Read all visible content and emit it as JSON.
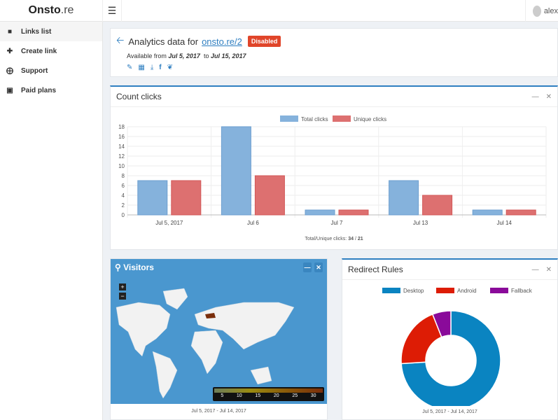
{
  "app": {
    "brand_bold": "Onsto",
    "brand_rest": ".re",
    "menu_icon": "hamburger-icon",
    "user": "alex"
  },
  "sidebar": {
    "items": [
      {
        "label": "Links list",
        "icon": "book-icon"
      },
      {
        "label": "Create link",
        "icon": "plus-icon"
      },
      {
        "label": "Support",
        "icon": "lifebuoy-icon"
      },
      {
        "label": "Paid plans",
        "icon": "money-icon"
      }
    ]
  },
  "header": {
    "title": "Analytics data for",
    "link": "onsto.re/2",
    "badge": "Disabled",
    "avail_prefix": "Available from",
    "from": "Jul 5, 2017",
    "to_word": "to",
    "to": "Jul 15, 2017"
  },
  "count_clicks": {
    "title": "Count clicks",
    "summary_label": "Total/Unique clicks:",
    "total": "34",
    "sep": "/",
    "unique": "21"
  },
  "visitors": {
    "title": "Visitors",
    "scale": [
      "5",
      "10",
      "15",
      "20",
      "25",
      "30"
    ],
    "range": "Jul 5, 2017 - Jul 14, 2017",
    "highlight_country": "Ukraine"
  },
  "redirect": {
    "title": "Redirect Rules",
    "range": "Jul 5, 2017 - Jul 14, 2017"
  },
  "chart_data": [
    {
      "type": "bar",
      "categories": [
        "Jul 5, 2017",
        "Jul 6",
        "Jul 7",
        "Jul 13",
        "Jul 14"
      ],
      "series": [
        {
          "name": "Total clicks",
          "values": [
            7,
            18,
            1,
            7,
            1
          ],
          "color": "#85b2dc"
        },
        {
          "name": "Unique clicks",
          "values": [
            7,
            8,
            1,
            4,
            1
          ],
          "color": "#dd7070"
        }
      ],
      "ylim": [
        0,
        18
      ],
      "yticks": [
        "0",
        "2",
        "4",
        "6",
        "8",
        "10",
        "12",
        "14",
        "16",
        "18"
      ],
      "grid": true,
      "legend": "top"
    },
    {
      "type": "pie",
      "donut": true,
      "categories": [
        "Desktop",
        "Android",
        "Fallback"
      ],
      "values": [
        74,
        20,
        6
      ],
      "colors": [
        "#0a84c1",
        "#dd1c05",
        "#8a0a9a"
      ],
      "legend": "top"
    }
  ]
}
